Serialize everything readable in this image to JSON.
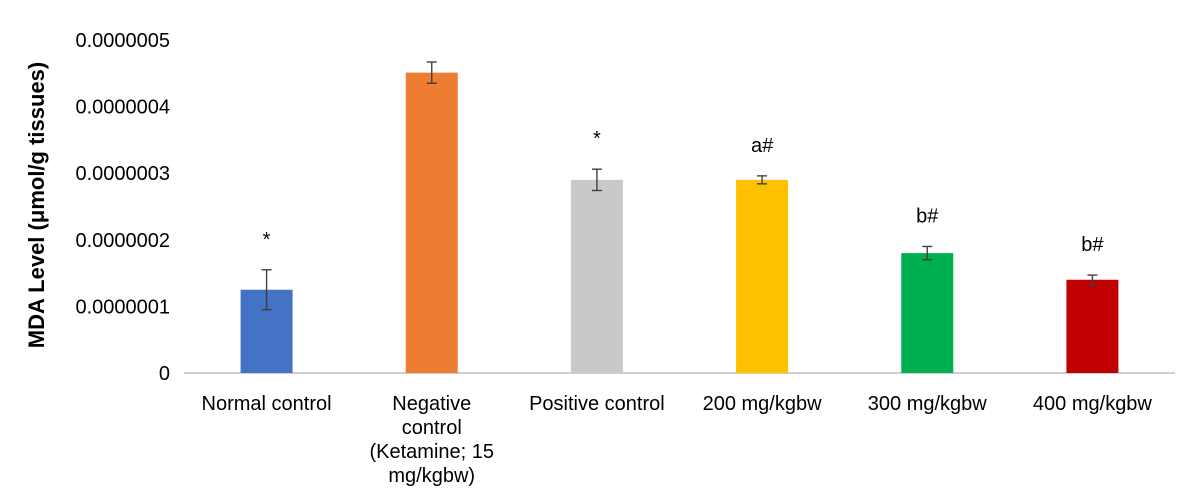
{
  "chart_data": {
    "type": "bar",
    "title": "",
    "xlabel": "",
    "ylabel": "MDA Level (μmol/g tissues)",
    "ylim": [
      0,
      5e-07
    ],
    "yticks": [
      "0",
      "0.0000001",
      "0.0000002",
      "0.0000003",
      "0.0000004",
      "0.0000005"
    ],
    "grid": false,
    "categories": [
      "Normal control",
      "Negative control (Ketamine; 15 mg/kgbw)",
      "Positive control",
      "200 mg/kgbw",
      "300 mg/kgbw",
      "400 mg/kgbw"
    ],
    "category_lines": [
      [
        "Normal control"
      ],
      [
        "Negative",
        "control",
        "(Ketamine; 15",
        "mg/kgbw)"
      ],
      [
        "Positive control"
      ],
      [
        "200 mg/kgbw"
      ],
      [
        "300 mg/kgbw"
      ],
      [
        "400 mg/kgbw"
      ]
    ],
    "values": [
      1.25e-07,
      4.51e-07,
      2.9e-07,
      2.9e-07,
      1.8e-07,
      1.4e-07
    ],
    "errors": [
      3e-08,
      1.6e-08,
      1.6e-08,
      6e-09,
      1e-08,
      7e-09
    ],
    "significance": [
      "*",
      "",
      "*",
      "a#",
      "b#",
      "b#"
    ],
    "colors": [
      "#4472c4",
      "#ed7d31",
      "#c9c9c9",
      "#ffc000",
      "#00b050",
      "#c00000"
    ]
  }
}
